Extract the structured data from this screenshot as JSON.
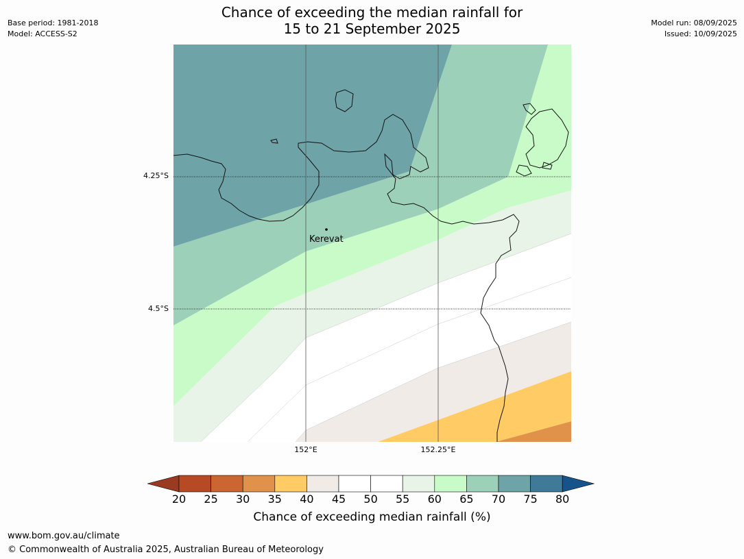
{
  "title_line1": "Chance of exceeding the median rainfall for",
  "title_line2": "15 to 21 September 2025",
  "meta_left": [
    "Base period: 1981-2018",
    "Model: ACCESS-S2"
  ],
  "meta_right": [
    "Model run: 08/09/2025",
    "Issued: 10/09/2025"
  ],
  "lat_labels": [
    "4.25°S",
    "4.5°S"
  ],
  "lon_labels": [
    "152°E",
    "152.25°E"
  ],
  "place": "Kerevat",
  "colorbar": {
    "ticks": [
      "20",
      "25",
      "30",
      "35",
      "40",
      "45",
      "50",
      "55",
      "60",
      "65",
      "70",
      "75",
      "80"
    ],
    "colors": [
      "#9a3b21",
      "#b64a25",
      "#cb6531",
      "#e0924a",
      "#fecb65",
      "#f0ebe6",
      "#ffffff",
      "#ffffff",
      "#e8f4e8",
      "#c8fbc8",
      "#9dd0b8",
      "#6ea3a8",
      "#3f7a98",
      "#17538b"
    ],
    "label": "Chance of exceeding median rainfall (%)"
  },
  "footer": [
    "www.bom.gov.au/climate",
    "© Commonwealth of Australia 2025, Australian Bureau of Meteorology"
  ]
}
